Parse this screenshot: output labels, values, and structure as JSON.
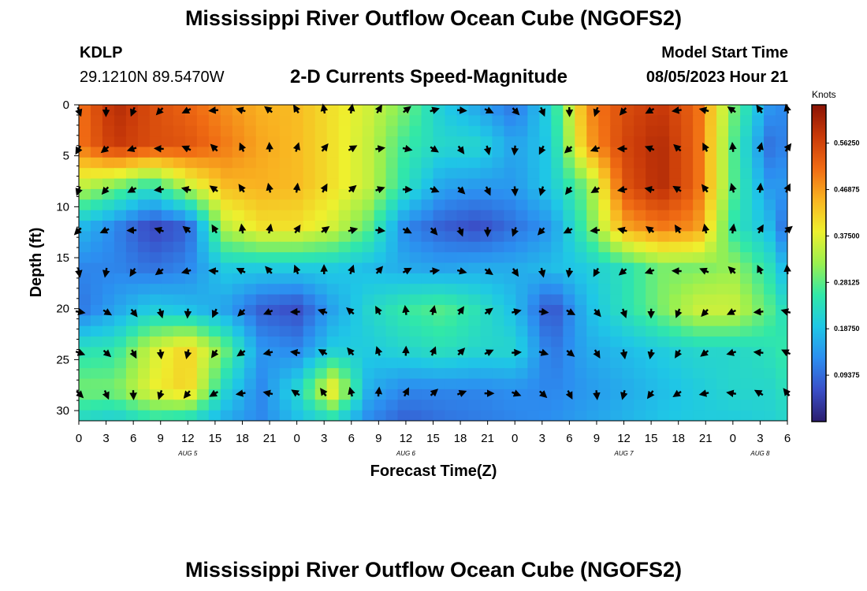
{
  "header": {
    "title": "Mississippi River Outflow Ocean Cube (NGOFS2)",
    "station_id": "KDLP",
    "station_coords": "29.1210N  89.5470W",
    "product": "2-D Currents Speed-Magnitude",
    "model_start_label": "Model Start Time",
    "model_start_value": "08/05/2023 Hour 21"
  },
  "footer": {
    "title": "Mississippi River Outflow Ocean Cube (NGOFS2)"
  },
  "colorbar": {
    "unit_label": "Knots",
    "tick_labels": [
      "0.56250",
      "0.46875",
      "0.37500",
      "0.28125",
      "0.18750",
      "0.09375"
    ],
    "tick_values": [
      0.5625,
      0.46875,
      0.375,
      0.28125,
      0.1875,
      0.09375
    ],
    "range": [
      0,
      0.64
    ],
    "colors": [
      "#2b1d6e",
      "#3a4fc8",
      "#2c8ef0",
      "#1fc7e6",
      "#31e8a8",
      "#9af04f",
      "#eef02e",
      "#f9b421",
      "#f06a13",
      "#c93a09",
      "#8a1305"
    ]
  },
  "chart_data": {
    "type": "heatmap",
    "title": "2-D Currents Speed-Magnitude",
    "xlabel": "Forecast Time(Z)",
    "ylabel": "Depth (ft)",
    "x_tick_labels": [
      "0",
      "3",
      "6",
      "9",
      "12",
      "15",
      "18",
      "21",
      "0",
      "3",
      "6",
      "9",
      "12",
      "15",
      "18",
      "21",
      "0",
      "3",
      "6",
      "9",
      "12",
      "15",
      "18",
      "21",
      "0",
      "3",
      "6"
    ],
    "x_range_hours": [
      0,
      78
    ],
    "date_labels": [
      {
        "label": "AUG 5",
        "hour": 12
      },
      {
        "label": "AUG 6",
        "hour": 36
      },
      {
        "label": "AUG 7",
        "hour": 60
      },
      {
        "label": "AUG 8",
        "hour": 75
      }
    ],
    "y_tick_labels": [
      "0",
      "5",
      "10",
      "15",
      "20",
      "25",
      "30"
    ],
    "y_range_ft": [
      0,
      31
    ],
    "depths_ft": [
      0,
      4,
      8,
      12,
      16,
      20,
      24,
      28,
      31
    ],
    "hours": [
      0,
      4,
      8,
      12,
      16,
      20,
      24,
      28,
      32,
      36,
      40,
      44,
      48,
      52,
      56,
      60,
      64,
      68,
      72,
      76,
      78
    ],
    "speed_knots": [
      [
        0.5,
        0.6,
        0.55,
        0.52,
        0.48,
        0.45,
        0.44,
        0.4,
        0.36,
        0.3,
        0.2,
        0.15,
        0.1,
        0.22,
        0.48,
        0.55,
        0.58,
        0.52,
        0.3,
        0.14,
        0.12
      ],
      [
        0.5,
        0.58,
        0.55,
        0.54,
        0.5,
        0.46,
        0.44,
        0.4,
        0.35,
        0.26,
        0.22,
        0.22,
        0.15,
        0.2,
        0.46,
        0.56,
        0.6,
        0.52,
        0.28,
        0.1,
        0.12
      ],
      [
        0.35,
        0.3,
        0.24,
        0.35,
        0.44,
        0.45,
        0.44,
        0.4,
        0.35,
        0.24,
        0.15,
        0.14,
        0.14,
        0.2,
        0.3,
        0.54,
        0.6,
        0.52,
        0.28,
        0.14,
        0.14
      ],
      [
        0.18,
        0.12,
        0.05,
        0.08,
        0.34,
        0.4,
        0.4,
        0.36,
        0.28,
        0.12,
        0.08,
        0.06,
        0.1,
        0.14,
        0.28,
        0.46,
        0.5,
        0.48,
        0.25,
        0.18,
        0.08
      ],
      [
        0.12,
        0.12,
        0.1,
        0.12,
        0.2,
        0.2,
        0.2,
        0.2,
        0.18,
        0.16,
        0.15,
        0.16,
        0.16,
        0.18,
        0.2,
        0.24,
        0.3,
        0.3,
        0.32,
        0.24,
        0.16
      ],
      [
        0.1,
        0.15,
        0.2,
        0.18,
        0.15,
        0.08,
        0.06,
        0.15,
        0.22,
        0.26,
        0.28,
        0.24,
        0.18,
        0.06,
        0.18,
        0.24,
        0.3,
        0.36,
        0.36,
        0.28,
        0.22
      ],
      [
        0.24,
        0.25,
        0.36,
        0.42,
        0.3,
        0.14,
        0.12,
        0.2,
        0.2,
        0.22,
        0.24,
        0.22,
        0.22,
        0.1,
        0.16,
        0.18,
        0.2,
        0.22,
        0.22,
        0.24,
        0.26
      ],
      [
        0.3,
        0.3,
        0.38,
        0.42,
        0.22,
        0.12,
        0.22,
        0.4,
        0.16,
        0.12,
        0.12,
        0.12,
        0.13,
        0.12,
        0.14,
        0.16,
        0.18,
        0.2,
        0.22,
        0.22,
        0.24
      ],
      [
        0.22,
        0.2,
        0.24,
        0.22,
        0.16,
        0.12,
        0.18,
        0.22,
        0.12,
        0.08,
        0.1,
        0.11,
        0.12,
        0.13,
        0.15,
        0.17,
        0.19,
        0.2,
        0.2,
        0.21,
        0.22
      ]
    ]
  }
}
